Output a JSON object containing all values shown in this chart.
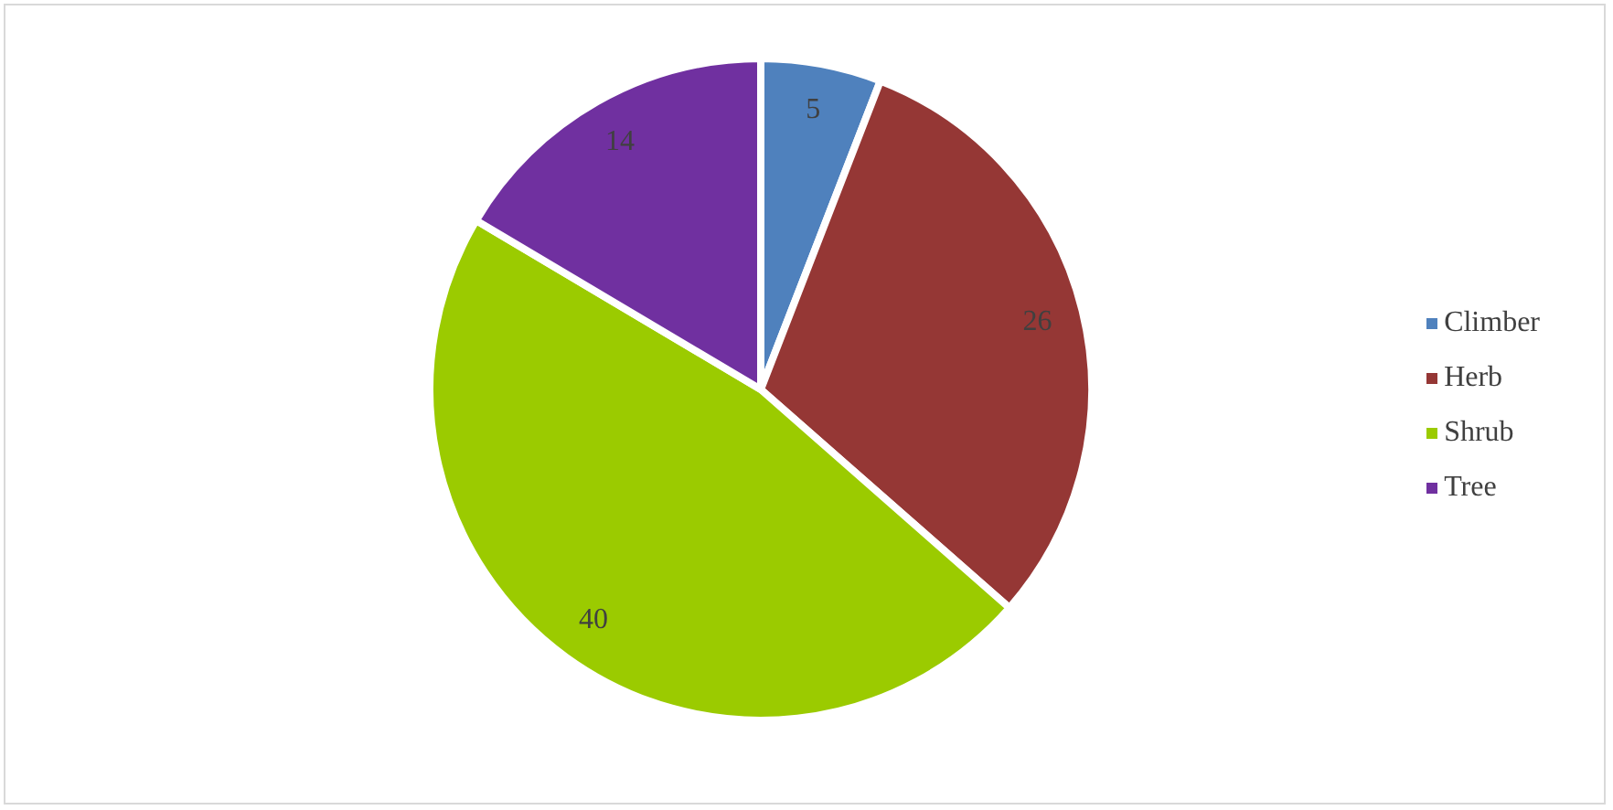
{
  "chart_data": {
    "type": "pie",
    "categories": [
      "Climber",
      "Herb",
      "Shrub",
      "Tree"
    ],
    "values": [
      5,
      26,
      40,
      14
    ],
    "colors": [
      "#4f81bd",
      "#953735",
      "#9bcb00",
      "#7030a0"
    ],
    "data_labels": true,
    "legend": "right"
  }
}
